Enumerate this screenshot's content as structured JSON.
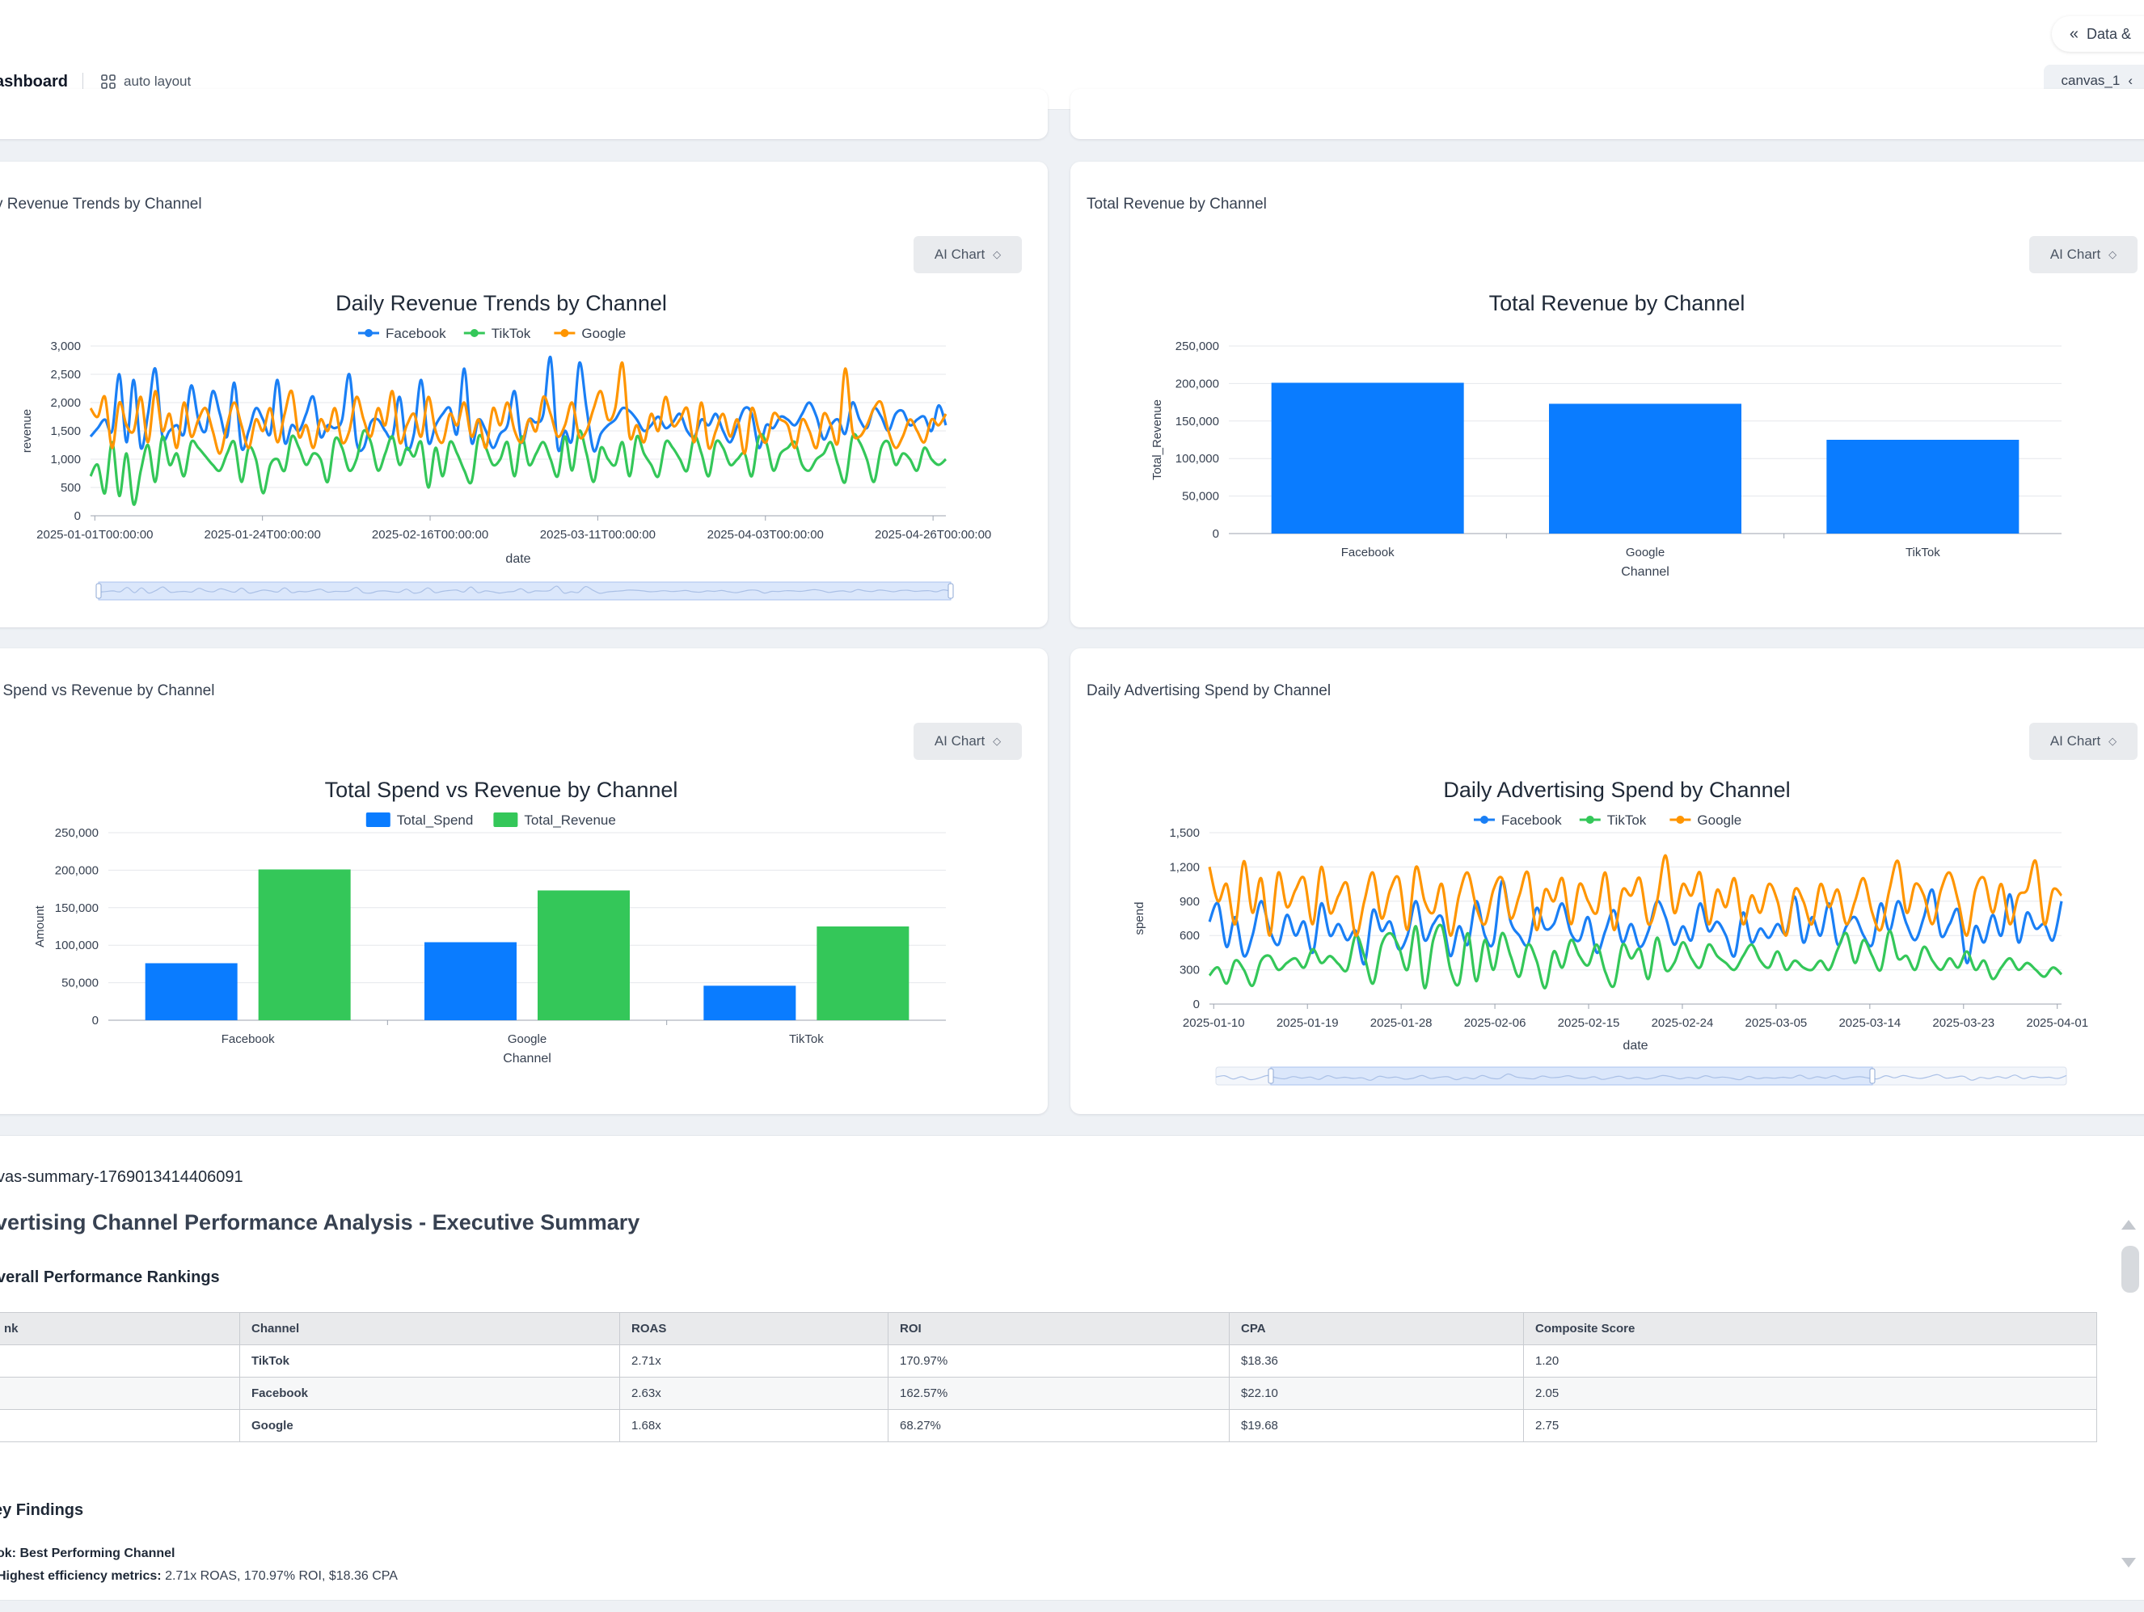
{
  "header": {
    "dashboard_title": "ashboard",
    "auto_layout_label": "auto layout",
    "data_button_label": "Data &",
    "canvas_tab_label": "canvas_1"
  },
  "cards": {
    "revenue_trend": {
      "label": "y Revenue Trends by Channel",
      "ai_button": "AI Chart"
    },
    "total_revenue": {
      "label": "Total Revenue by Channel",
      "ai_button": "AI Chart"
    },
    "spend_vs_revenue": {
      "label": "l Spend vs Revenue by Channel",
      "ai_button": "AI Chart"
    },
    "daily_spend": {
      "label": "Daily Advertising Spend by Channel",
      "ai_button": "AI Chart"
    }
  },
  "colors": {
    "facebook": "#1a7ff5",
    "tiktok": "#34c759",
    "google": "#ff9500",
    "bar_blue": "#0a7cff",
    "bar_green": "#34c759"
  },
  "chart_data": [
    {
      "id": "revenue_trend",
      "type": "line",
      "title": "Daily Revenue Trends by Channel",
      "xlabel": "date",
      "ylabel": "revenue",
      "ylim": [
        0,
        3000
      ],
      "yticks": [
        "0",
        "500",
        "1,000",
        "1,500",
        "2,000",
        "2,500",
        "3,000"
      ],
      "xticks": [
        "2025-01-01T00:00:00",
        "2025-01-24T00:00:00",
        "2025-02-16T00:00:00",
        "2025-03-11T00:00:00",
        "2025-04-03T00:00:00",
        "2025-04-26T00:00:00"
      ],
      "legend": "top",
      "series": [
        {
          "name": "Facebook",
          "color": "#1a7ff5",
          "values": [
            1400,
            1550,
            1700,
            1500,
            2500,
            1300,
            2400,
            1200,
            1800,
            2600,
            1400,
            1500,
            1600,
            1450,
            2300,
            1700,
            1500,
            2200,
            1800,
            1400,
            2350,
            1200,
            1500,
            1900,
            1700,
            1450,
            2400,
            1300,
            1600,
            1500,
            1800,
            2100,
            1400,
            1600,
            1550,
            1700,
            2500,
            1300,
            1200,
            1650,
            1700,
            1500,
            1400,
            2100,
            1200,
            1450,
            2400,
            1300,
            1600,
            1800,
            1900,
            1450,
            2600,
            1300,
            1700,
            1500,
            1200,
            1450,
            1600,
            2200,
            1300,
            1700,
            1650,
            1800,
            2800,
            1200,
            1500,
            1350,
            2700,
            1900,
            1150,
            1450,
            1600,
            1700,
            1900,
            1850,
            1700,
            1500,
            1600,
            1750,
            1550,
            1650,
            1800,
            1500,
            1400,
            1700,
            1600,
            1800,
            1500,
            1300,
            1600,
            1900,
            1800,
            1200,
            1600,
            1550,
            1750,
            1700,
            1600,
            1800,
            2000,
            1750,
            1350,
            1600,
            1700,
            1450,
            2000,
            1700,
            1550,
            1900,
            1750,
            1500,
            1800,
            1850,
            1600,
            1700,
            1750,
            1500,
            1950,
            1600
          ]
        },
        {
          "name": "TikTok",
          "color": "#34c759",
          "values": [
            700,
            900,
            400,
            1300,
            350,
            1100,
            200,
            800,
            1250,
            600,
            1400,
            900,
            1100,
            700,
            1300,
            1200,
            1050,
            900,
            800,
            1100,
            1300,
            600,
            1200,
            1000,
            400,
            900,
            1000,
            800,
            1400,
            1200,
            900,
            1100,
            1000,
            600,
            1350,
            1200,
            800,
            1000,
            1500,
            1300,
            800,
            1100,
            1400,
            900,
            1200,
            1050,
            1300,
            500,
            1200,
            700,
            1300,
            1100,
            800,
            600,
            1400,
            1200,
            900,
            1000,
            1300,
            700,
            1400,
            900,
            1100,
            1300,
            1000,
            700,
            1400,
            800,
            1500,
            1100,
            600,
            1200,
            1000,
            900,
            1300,
            700,
            1400,
            1100,
            900,
            700,
            1300,
            1200,
            1000,
            800,
            1400,
            1100,
            700,
            1300,
            1200,
            900,
            1000,
            1100,
            700,
            1400,
            1300,
            800,
            1100,
            1200,
            1300,
            900,
            800,
            1000,
            1100,
            1300,
            900,
            600,
            1400,
            1300,
            1000,
            600,
            1200,
            1300,
            900,
            1100,
            1000,
            800,
            1200,
            1000,
            900,
            1000
          ]
        },
        {
          "name": "Google",
          "color": "#ff9500",
          "values": [
            1900,
            1750,
            2100,
            1200,
            2000,
            1600,
            1500,
            2100,
            1300,
            2200,
            1500,
            1800,
            1200,
            2000,
            1400,
            1700,
            1900,
            1500,
            1100,
            1600,
            2000,
            1600,
            1200,
            1700,
            1500,
            1900,
            1300,
            1800,
            2200,
            1400,
            1600,
            1200,
            1700,
            1500,
            1900,
            1300,
            1500,
            2100,
            1700,
            1400,
            1900,
            1600,
            2200,
            1300,
            1600,
            1800,
            1400,
            2100,
            1500,
            1300,
            1800,
            1600,
            2000,
            1400,
            1700,
            1200,
            1900,
            1600,
            2000,
            1500,
            1300,
            1700,
            1500,
            2100,
            1800,
            1400,
            1600,
            2000,
            1400,
            1500,
            1900,
            2200,
            1700,
            1900,
            2700,
            1400,
            1600,
            1300,
            1800,
            1500,
            2100,
            1600,
            1700,
            1900,
            1300,
            2000,
            1200,
            1500,
            1800,
            1400,
            1700,
            1100,
            1900,
            1500,
            1300,
            1800,
            1700,
            1600,
            1200,
            1700,
            1500,
            1200,
            1800,
            1600,
            1300,
            2600,
            1500,
            1400,
            1600,
            1900,
            2000,
            1500,
            1200,
            1400,
            1700,
            1500,
            1300,
            1700,
            1600,
            1800
          ]
        }
      ]
    },
    {
      "id": "total_revenue",
      "type": "bar",
      "title": "Total Revenue by Channel",
      "xlabel": "Channel",
      "ylabel": "Total_Revenue",
      "ylim": [
        0,
        250000
      ],
      "yticks": [
        "0",
        "50,000",
        "100,000",
        "150,000",
        "200,000",
        "250,000"
      ],
      "categories": [
        "Facebook",
        "Google",
        "TikTok"
      ],
      "values": [
        201000,
        173000,
        125000
      ]
    },
    {
      "id": "spend_vs_revenue",
      "type": "bar",
      "title": "Total Spend vs Revenue by Channel",
      "xlabel": "Channel",
      "ylabel": "Amount",
      "ylim": [
        0,
        250000
      ],
      "yticks": [
        "0",
        "50,000",
        "100,000",
        "150,000",
        "200,000",
        "250,000"
      ],
      "categories": [
        "Facebook",
        "Google",
        "TikTok"
      ],
      "legend": "top",
      "series": [
        {
          "name": "Total_Spend",
          "color": "#0a7cff",
          "values": [
            76000,
            104000,
            46000
          ]
        },
        {
          "name": "Total_Revenue",
          "color": "#34c759",
          "values": [
            201000,
            173000,
            125000
          ]
        }
      ]
    },
    {
      "id": "daily_spend",
      "type": "line",
      "title": "Daily Advertising Spend by Channel",
      "xlabel": "date",
      "ylabel": "spend",
      "ylim": [
        0,
        1500
      ],
      "yticks": [
        "0",
        "300",
        "600",
        "900",
        "1,200",
        "1,500"
      ],
      "xticks": [
        "2025-01-10",
        "2025-01-19",
        "2025-01-28",
        "2025-02-06",
        "2025-02-15",
        "2025-02-24",
        "2025-03-05",
        "2025-03-14",
        "2025-03-23",
        "2025-04-01"
      ],
      "legend": "top",
      "series": [
        {
          "name": "Facebook",
          "color": "#1a7ff5",
          "values": [
            720,
            880,
            500,
            760,
            420,
            600,
            900,
            650,
            520,
            780,
            600,
            720,
            450,
            880,
            600,
            700,
            560,
            640,
            350,
            820,
            640,
            720,
            480,
            600,
            900,
            560,
            700,
            760,
            420,
            680,
            520,
            900,
            600,
            540,
            1080,
            720,
            600,
            520,
            840,
            660,
            700,
            880,
            620,
            560,
            760,
            450,
            640,
            820,
            540,
            700,
            500,
            640,
            900,
            760,
            520,
            680,
            560,
            880,
            640,
            720,
            600,
            420,
            800,
            540,
            660,
            580,
            700,
            620,
            940,
            540,
            760,
            600,
            880,
            520,
            680,
            760,
            600,
            520,
            880,
            640,
            900,
            700,
            560,
            760,
            1000,
            600,
            700,
            820,
            360,
            680,
            540,
            780,
            600,
            960,
            540,
            800,
            660,
            700,
            560,
            900
          ]
        },
        {
          "name": "TikTok",
          "color": "#34c759",
          "values": [
            250,
            320,
            180,
            380,
            300,
            160,
            380,
            420,
            300,
            360,
            400,
            320,
            480,
            360,
            420,
            350,
            300,
            600,
            420,
            180,
            520,
            620,
            500,
            300,
            680,
            140,
            560,
            680,
            300,
            180,
            620,
            200,
            560,
            300,
            620,
            420,
            240,
            520,
            380,
            140,
            460,
            320,
            560,
            420,
            340,
            520,
            280,
            160,
            520,
            400,
            480,
            220,
            580,
            300,
            360,
            540,
            400,
            320,
            520,
            420,
            360,
            300,
            420,
            520,
            380,
            320,
            460,
            300,
            380,
            320,
            300,
            380,
            300,
            480,
            620,
            360,
            560,
            420,
            300,
            640,
            400,
            420,
            300,
            500,
            380,
            300,
            400,
            320,
            460,
            300,
            380,
            220,
            320,
            400,
            300,
            360,
            300,
            240,
            320,
            260
          ]
        },
        {
          "name": "Google",
          "color": "#ff9500",
          "values": [
            1200,
            900,
            1050,
            700,
            1250,
            800,
            1100,
            600,
            1150,
            850,
            1000,
            1100,
            700,
            1200,
            800,
            950,
            1050,
            600,
            900,
            1150,
            750,
            1000,
            1100,
            650,
            1200,
            900,
            800,
            1050,
            600,
            950,
            1150,
            850,
            700,
            1000,
            1100,
            750,
            950,
            1150,
            650,
            1000,
            900,
            1100,
            700,
            1050,
            900,
            800,
            1150,
            650,
            1000,
            950,
            1100,
            700,
            900,
            1300,
            800,
            1050,
            950,
            1150,
            700,
            1000,
            850,
            1100,
            700,
            950,
            800,
            1050,
            900,
            600,
            1000,
            900,
            700,
            1050,
            850,
            1000,
            700,
            900,
            1100,
            800,
            650,
            1000,
            1250,
            800,
            1050,
            950,
            700,
            1000,
            1150,
            900,
            600,
            1000,
            1100,
            800,
            1050,
            700,
            950,
            1000,
            1250,
            700,
            1000,
            950
          ]
        }
      ]
    }
  ],
  "summary": {
    "id_label": "vas-summary-1769013414406091",
    "title": "vertising Channel Performance Analysis - Executive Summary",
    "rankings_heading": "verall Performance Rankings",
    "table": {
      "headers": [
        "nk",
        "Channel",
        "ROAS",
        "ROI",
        "CPA",
        "Composite Score"
      ],
      "rows": [
        [
          "",
          "TikTok",
          "2.71x",
          "170.97%",
          "$18.36",
          "1.20"
        ],
        [
          "",
          "Facebook",
          "2.63x",
          "162.57%",
          "$22.10",
          "2.05"
        ],
        [
          "",
          "Google",
          "1.68x",
          "68.27%",
          "$19.68",
          "2.75"
        ]
      ]
    },
    "findings_heading": "ey Findings",
    "finding_title": "ok: Best Performing Channel",
    "finding_label": "Highest efficiency metrics:",
    "finding_text": " 2.71x ROAS, 170.97% ROI, $18.36 CPA"
  }
}
